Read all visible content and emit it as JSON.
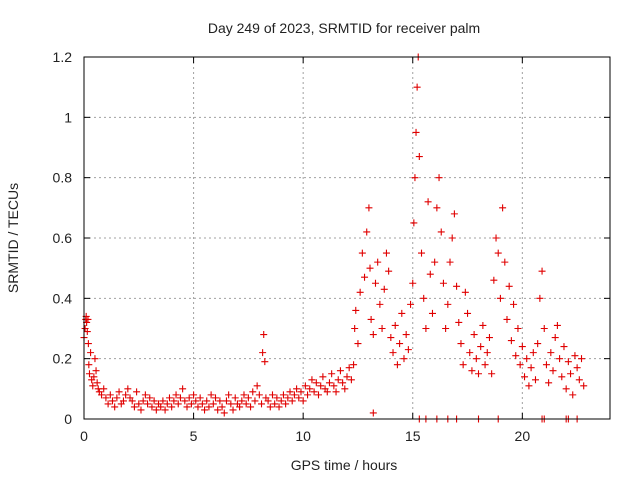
{
  "chart_data": {
    "type": "scatter",
    "title": "Day 249 of 2023, SRMTID for receiver palm",
    "xlabel": "GPS time / hours",
    "ylabel": "SRMTID / TECUs",
    "xlim": [
      0,
      24
    ],
    "ylim": [
      0,
      1.2
    ],
    "xticks": [
      0,
      5,
      10,
      15,
      20
    ],
    "xtick_labels": [
      "0",
      "5",
      "10",
      "15",
      "20"
    ],
    "yticks": [
      0,
      0.2,
      0.4,
      0.6,
      0.8,
      1.0,
      1.2
    ],
    "ytick_labels": [
      "0",
      "0.2",
      "0.4",
      "0.6",
      "0.8",
      "1",
      "1.2"
    ],
    "grid": true,
    "marker": "+",
    "color": "#e00000",
    "series": [
      {
        "name": "SRMTID",
        "points": [
          [
            0.0,
            0.27
          ],
          [
            0.05,
            0.3
          ],
          [
            0.08,
            0.33
          ],
          [
            0.1,
            0.34
          ],
          [
            0.12,
            0.32
          ],
          [
            0.15,
            0.29
          ],
          [
            0.18,
            0.33
          ],
          [
            0.2,
            0.25
          ],
          [
            0.22,
            0.18
          ],
          [
            0.25,
            0.15
          ],
          [
            0.3,
            0.22
          ],
          [
            0.35,
            0.13
          ],
          [
            0.4,
            0.11
          ],
          [
            0.45,
            0.14
          ],
          [
            0.5,
            0.2
          ],
          [
            0.55,
            0.16
          ],
          [
            0.6,
            0.12
          ],
          [
            0.65,
            0.1
          ],
          [
            0.7,
            0.09
          ],
          [
            0.8,
            0.08
          ],
          [
            0.9,
            0.1
          ],
          [
            1.0,
            0.07
          ],
          [
            1.1,
            0.05
          ],
          [
            1.2,
            0.08
          ],
          [
            1.3,
            0.06
          ],
          [
            1.4,
            0.04
          ],
          [
            1.5,
            0.07
          ],
          [
            1.6,
            0.09
          ],
          [
            1.7,
            0.05
          ],
          [
            1.8,
            0.06
          ],
          [
            1.9,
            0.08
          ],
          [
            2.0,
            0.1
          ],
          [
            2.1,
            0.07
          ],
          [
            2.2,
            0.06
          ],
          [
            2.3,
            0.04
          ],
          [
            2.4,
            0.09
          ],
          [
            2.5,
            0.05
          ],
          [
            2.6,
            0.03
          ],
          [
            2.7,
            0.06
          ],
          [
            2.8,
            0.08
          ],
          [
            2.9,
            0.05
          ],
          [
            3.0,
            0.07
          ],
          [
            3.1,
            0.04
          ],
          [
            3.2,
            0.06
          ],
          [
            3.3,
            0.03
          ],
          [
            3.4,
            0.05
          ],
          [
            3.5,
            0.04
          ],
          [
            3.6,
            0.06
          ],
          [
            3.7,
            0.03
          ],
          [
            3.8,
            0.05
          ],
          [
            3.9,
            0.07
          ],
          [
            4.0,
            0.04
          ],
          [
            4.1,
            0.06
          ],
          [
            4.2,
            0.08
          ],
          [
            4.3,
            0.05
          ],
          [
            4.4,
            0.07
          ],
          [
            4.5,
            0.1
          ],
          [
            4.6,
            0.06
          ],
          [
            4.7,
            0.04
          ],
          [
            4.8,
            0.07
          ],
          [
            4.9,
            0.05
          ],
          [
            5.0,
            0.08
          ],
          [
            5.1,
            0.06
          ],
          [
            5.2,
            0.04
          ],
          [
            5.3,
            0.07
          ],
          [
            5.4,
            0.05
          ],
          [
            5.5,
            0.03
          ],
          [
            5.6,
            0.06
          ],
          [
            5.7,
            0.04
          ],
          [
            5.8,
            0.08
          ],
          [
            5.9,
            0.05
          ],
          [
            6.0,
            0.07
          ],
          [
            6.1,
            0.03
          ],
          [
            6.2,
            0.06
          ],
          [
            6.3,
            0.04
          ],
          [
            6.4,
            0.02
          ],
          [
            6.5,
            0.06
          ],
          [
            6.6,
            0.08
          ],
          [
            6.7,
            0.05
          ],
          [
            6.8,
            0.03
          ],
          [
            6.9,
            0.07
          ],
          [
            7.0,
            0.05
          ],
          [
            7.1,
            0.04
          ],
          [
            7.2,
            0.06
          ],
          [
            7.3,
            0.08
          ],
          [
            7.4,
            0.05
          ],
          [
            7.5,
            0.07
          ],
          [
            7.6,
            0.04
          ],
          [
            7.7,
            0.09
          ],
          [
            7.8,
            0.06
          ],
          [
            7.9,
            0.11
          ],
          [
            8.0,
            0.08
          ],
          [
            8.1,
            0.05
          ],
          [
            8.15,
            0.22
          ],
          [
            8.2,
            0.28
          ],
          [
            8.25,
            0.19
          ],
          [
            8.3,
            0.07
          ],
          [
            8.4,
            0.06
          ],
          [
            8.5,
            0.04
          ],
          [
            8.6,
            0.08
          ],
          [
            8.7,
            0.05
          ],
          [
            8.8,
            0.07
          ],
          [
            8.9,
            0.04
          ],
          [
            9.0,
            0.06
          ],
          [
            9.1,
            0.08
          ],
          [
            9.2,
            0.05
          ],
          [
            9.3,
            0.07
          ],
          [
            9.4,
            0.09
          ],
          [
            9.5,
            0.06
          ],
          [
            9.6,
            0.08
          ],
          [
            9.7,
            0.1
          ],
          [
            9.8,
            0.07
          ],
          [
            9.9,
            0.09
          ],
          [
            10.0,
            0.06
          ],
          [
            10.1,
            0.11
          ],
          [
            10.2,
            0.08
          ],
          [
            10.3,
            0.1
          ],
          [
            10.4,
            0.13
          ],
          [
            10.5,
            0.09
          ],
          [
            10.6,
            0.12
          ],
          [
            10.7,
            0.08
          ],
          [
            10.8,
            0.11
          ],
          [
            10.9,
            0.14
          ],
          [
            11.0,
            0.1
          ],
          [
            11.1,
            0.09
          ],
          [
            11.2,
            0.12
          ],
          [
            11.3,
            0.15
          ],
          [
            11.4,
            0.11
          ],
          [
            11.5,
            0.09
          ],
          [
            11.6,
            0.13
          ],
          [
            11.7,
            0.16
          ],
          [
            11.8,
            0.12
          ],
          [
            11.9,
            0.1
          ],
          [
            12.0,
            0.14
          ],
          [
            12.1,
            0.17
          ],
          [
            12.2,
            0.13
          ],
          [
            12.3,
            0.18
          ],
          [
            12.35,
            0.3
          ],
          [
            12.4,
            0.36
          ],
          [
            12.5,
            0.25
          ],
          [
            12.6,
            0.42
          ],
          [
            12.7,
            0.55
          ],
          [
            12.8,
            0.47
          ],
          [
            12.9,
            0.62
          ],
          [
            13.0,
            0.7
          ],
          [
            13.05,
            0.5
          ],
          [
            13.1,
            0.33
          ],
          [
            13.2,
            0.28
          ],
          [
            13.3,
            0.45
          ],
          [
            13.4,
            0.52
          ],
          [
            13.5,
            0.38
          ],
          [
            13.6,
            0.3
          ],
          [
            13.7,
            0.43
          ],
          [
            13.8,
            0.55
          ],
          [
            13.9,
            0.49
          ],
          [
            14.0,
            0.27
          ],
          [
            14.1,
            0.22
          ],
          [
            14.2,
            0.31
          ],
          [
            14.3,
            0.18
          ],
          [
            14.4,
            0.25
          ],
          [
            14.5,
            0.35
          ],
          [
            14.6,
            0.2
          ],
          [
            14.7,
            0.28
          ],
          [
            14.8,
            0.23
          ],
          [
            14.9,
            0.38
          ],
          [
            15.0,
            0.45
          ],
          [
            15.05,
            0.65
          ],
          [
            15.1,
            0.8
          ],
          [
            15.15,
            0.95
          ],
          [
            15.2,
            1.1
          ],
          [
            15.25,
            1.2
          ],
          [
            15.3,
            0.87
          ],
          [
            15.4,
            0.55
          ],
          [
            15.5,
            0.4
          ],
          [
            15.6,
            0.3
          ],
          [
            15.7,
            0.72
          ],
          [
            15.8,
            0.48
          ],
          [
            15.9,
            0.35
          ],
          [
            16.0,
            0.52
          ],
          [
            16.1,
            0.7
          ],
          [
            16.2,
            0.8
          ],
          [
            16.3,
            0.62
          ],
          [
            16.4,
            0.45
          ],
          [
            16.5,
            0.3
          ],
          [
            16.6,
            0.38
          ],
          [
            16.7,
            0.52
          ],
          [
            16.8,
            0.6
          ],
          [
            16.9,
            0.68
          ],
          [
            17.0,
            0.44
          ],
          [
            17.1,
            0.32
          ],
          [
            17.2,
            0.25
          ],
          [
            17.3,
            0.18
          ],
          [
            17.4,
            0.42
          ],
          [
            17.5,
            0.35
          ],
          [
            17.6,
            0.22
          ],
          [
            17.7,
            0.16
          ],
          [
            17.8,
            0.28
          ],
          [
            17.9,
            0.2
          ],
          [
            18.0,
            0.15
          ],
          [
            18.1,
            0.24
          ],
          [
            18.2,
            0.31
          ],
          [
            18.3,
            0.18
          ],
          [
            18.4,
            0.22
          ],
          [
            18.5,
            0.27
          ],
          [
            18.6,
            0.15
          ],
          [
            18.7,
            0.46
          ],
          [
            18.8,
            0.6
          ],
          [
            18.9,
            0.55
          ],
          [
            19.0,
            0.4
          ],
          [
            19.1,
            0.7
          ],
          [
            19.2,
            0.52
          ],
          [
            19.3,
            0.33
          ],
          [
            19.4,
            0.44
          ],
          [
            19.5,
            0.26
          ],
          [
            19.6,
            0.38
          ],
          [
            19.7,
            0.21
          ],
          [
            19.8,
            0.3
          ],
          [
            19.9,
            0.18
          ],
          [
            20.0,
            0.24
          ],
          [
            20.1,
            0.14
          ],
          [
            20.2,
            0.2
          ],
          [
            20.3,
            0.11
          ],
          [
            20.4,
            0.17
          ],
          [
            20.5,
            0.22
          ],
          [
            20.6,
            0.13
          ],
          [
            20.7,
            0.25
          ],
          [
            20.8,
            0.4
          ],
          [
            20.9,
            0.49
          ],
          [
            21.0,
            0.3
          ],
          [
            21.1,
            0.18
          ],
          [
            21.2,
            0.12
          ],
          [
            21.3,
            0.22
          ],
          [
            21.4,
            0.16
          ],
          [
            21.5,
            0.27
          ],
          [
            21.6,
            0.31
          ],
          [
            21.7,
            0.2
          ],
          [
            21.8,
            0.14
          ],
          [
            21.9,
            0.24
          ],
          [
            22.0,
            0.1
          ],
          [
            22.1,
            0.19
          ],
          [
            22.2,
            0.15
          ],
          [
            22.3,
            0.08
          ],
          [
            22.4,
            0.21
          ],
          [
            22.5,
            0.17
          ],
          [
            22.6,
            0.13
          ],
          [
            22.7,
            0.2
          ],
          [
            22.8,
            0.11
          ],
          [
            13.2,
            0.02
          ],
          [
            15.3,
            0.0
          ],
          [
            15.6,
            0.0
          ],
          [
            16.1,
            0.0
          ],
          [
            16.6,
            0.0
          ],
          [
            17.0,
            0.0
          ],
          [
            18.0,
            0.0
          ],
          [
            18.9,
            0.0
          ],
          [
            20.9,
            0.0
          ],
          [
            21.0,
            0.0
          ],
          [
            22.0,
            0.0
          ],
          [
            22.1,
            0.0
          ],
          [
            22.5,
            0.0
          ]
        ]
      }
    ]
  }
}
